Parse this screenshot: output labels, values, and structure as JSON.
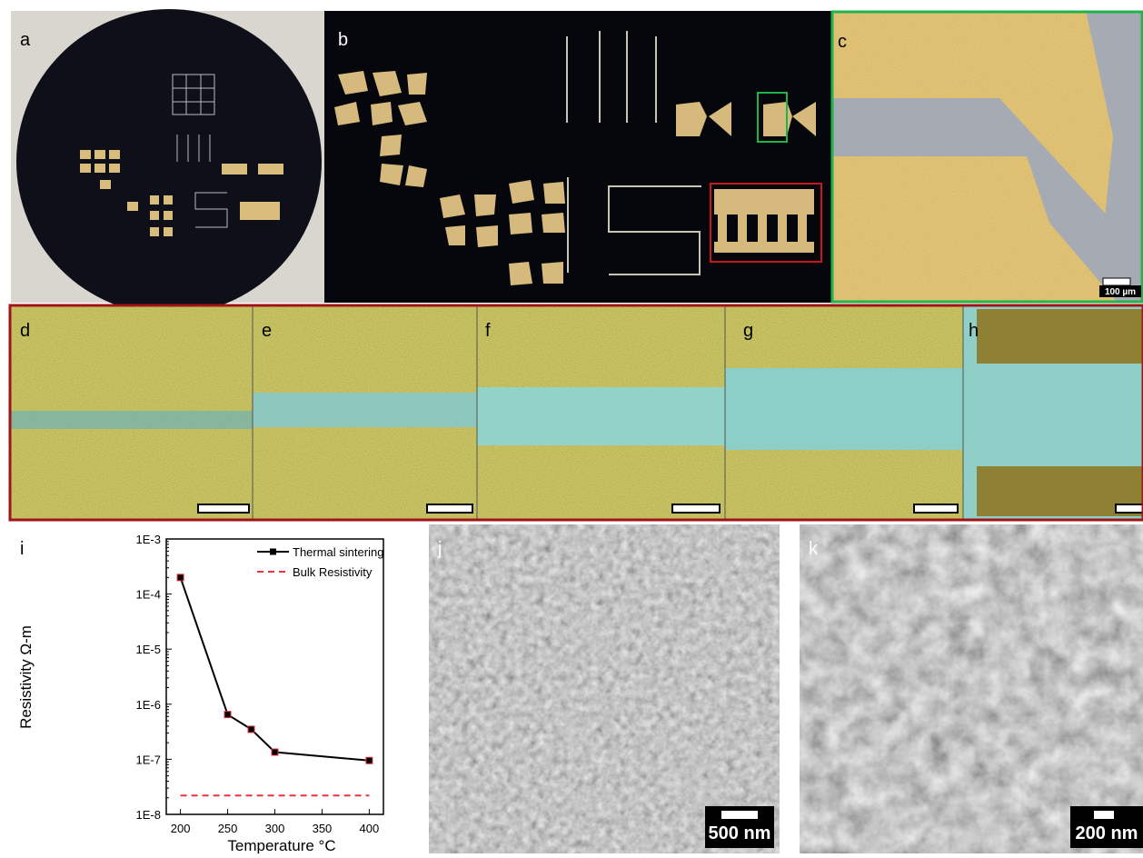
{
  "panel_labels": [
    "a",
    "b",
    "c",
    "d",
    "e",
    "f",
    "g",
    "h",
    "i",
    "j",
    "k"
  ],
  "scale_bars": {
    "c": "100 µm",
    "j": "500 nm",
    "k": "200 nm"
  },
  "chart_data": {
    "type": "line",
    "x_label": "Temperature °C",
    "y_label": "Resistivity Ω-m",
    "x": [
      200,
      250,
      275,
      300,
      400
    ],
    "series": [
      {
        "name": "Thermal sintering",
        "color": "#000000",
        "values": [
          0.0002,
          6.5e-07,
          3.5e-07,
          1.35e-07,
          9.5e-08
        ]
      },
      {
        "name": "Bulk Resistivity",
        "color": "#e8343e",
        "values": [
          2.2e-08,
          2.2e-08,
          2.2e-08,
          2.2e-08,
          2.2e-08
        ]
      }
    ],
    "xlim": [
      185,
      415
    ],
    "xticks": [
      200,
      250,
      300,
      350,
      400
    ],
    "ylim": [
      1e-08,
      0.001
    ],
    "log_y": true,
    "yticks": [
      {
        "value": 1e-08,
        "label": "1E-8"
      },
      {
        "value": 1e-07,
        "label": "1E-7"
      },
      {
        "value": 1e-06,
        "label": "1E-6"
      },
      {
        "value": 1e-05,
        "label": "1E-5"
      },
      {
        "value": 0.0001,
        "label": "1E-4"
      },
      {
        "value": 0.001,
        "label": "1E-3"
      }
    ],
    "legend": "upper right"
  }
}
